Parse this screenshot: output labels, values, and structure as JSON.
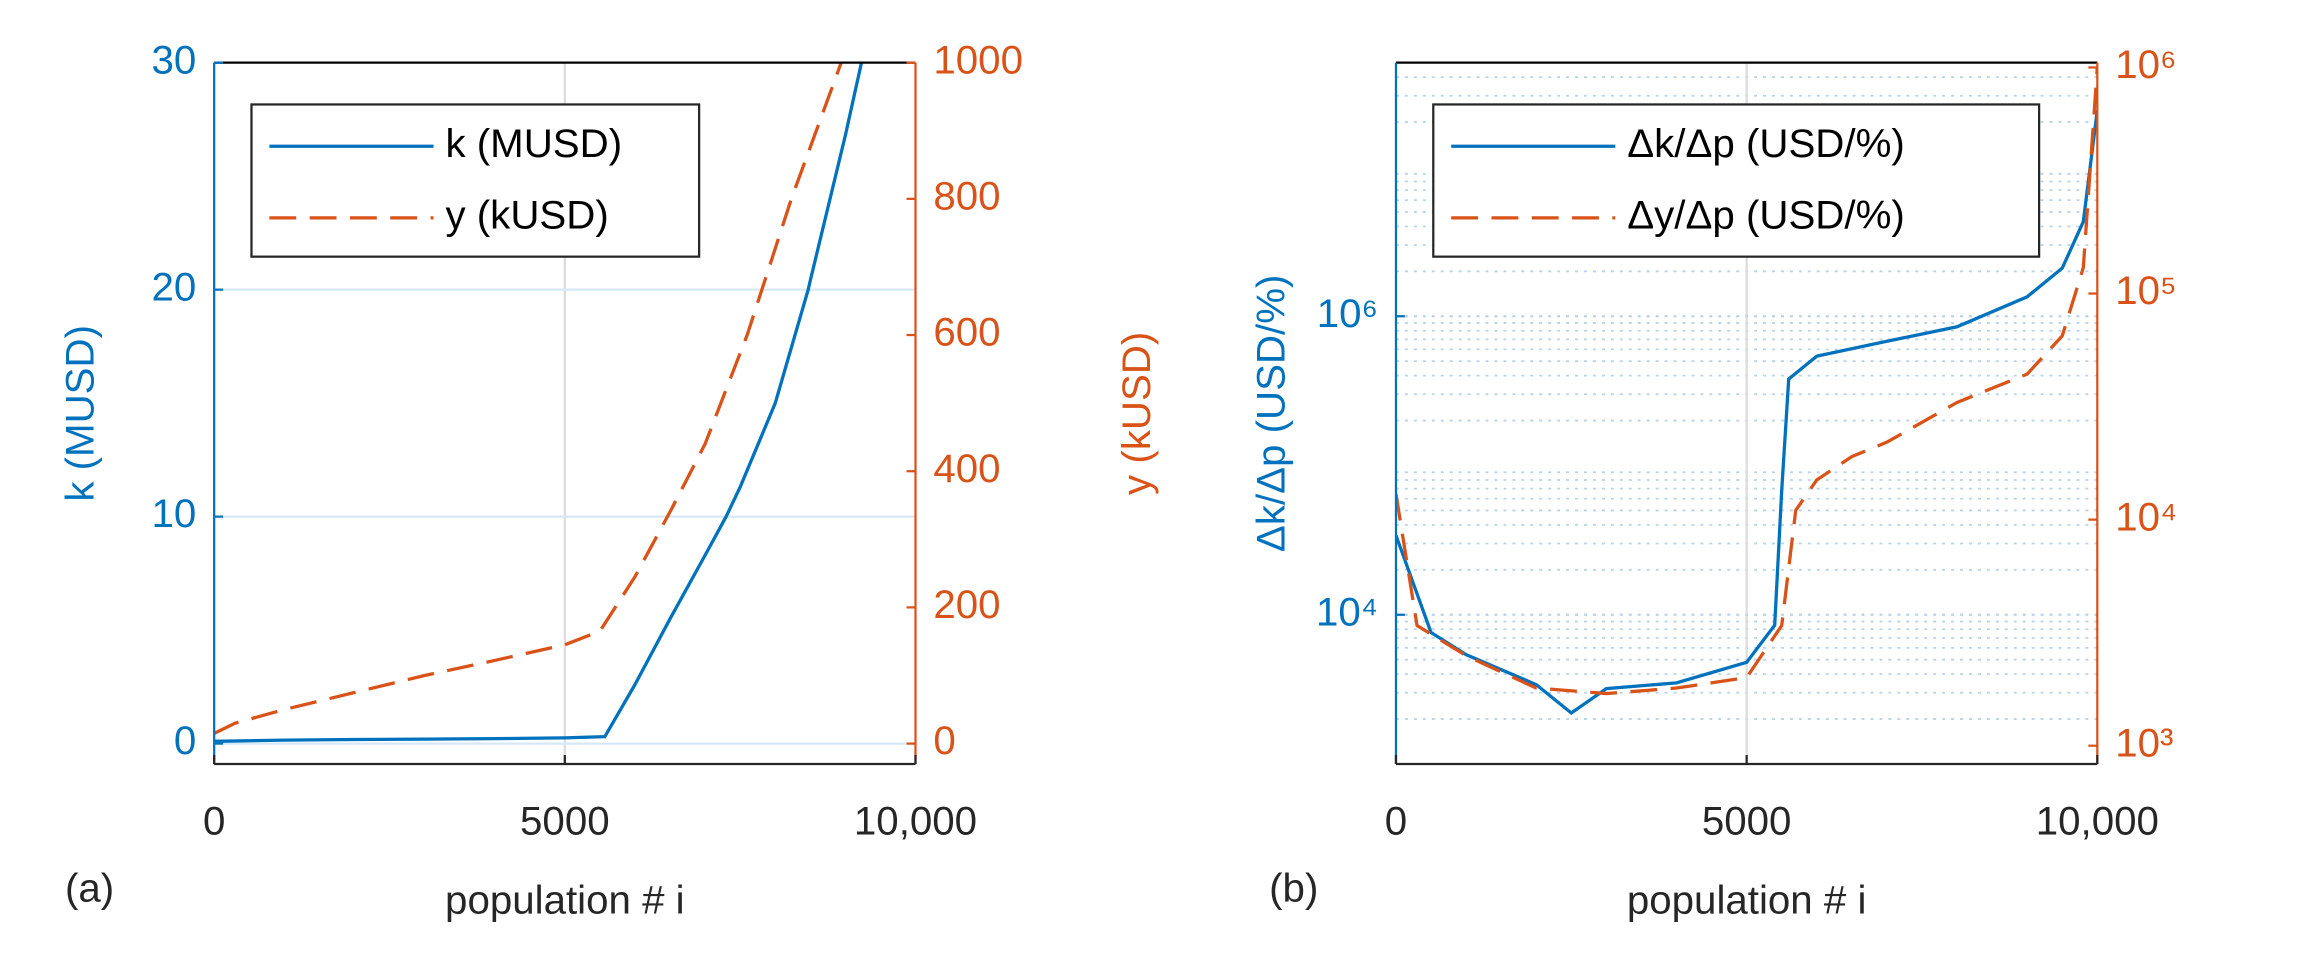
{
  "chart_data": [
    {
      "type": "line",
      "panel_label": "(a)",
      "xlabel": "population # i",
      "ylabel": "k (MUSD)",
      "y2label": "y (kUSD)",
      "xlim": [
        0,
        10000
      ],
      "xticks": [
        0,
        5000,
        {
          "value": 10000,
          "label": "10,000"
        }
      ],
      "ylim": [
        -0.9,
        30
      ],
      "yticks": [
        0,
        10,
        20,
        30
      ],
      "y2lim": [
        -30,
        1000
      ],
      "y2ticks": [
        0,
        200,
        400,
        600,
        800,
        1000
      ],
      "ylog": false,
      "y2log": false,
      "grid": true,
      "minor_grid": false,
      "legend": "top-left",
      "series": [
        {
          "name": "k (MUSD)",
          "color": "#0072BD",
          "dash": false,
          "axis": "y",
          "x": [
            0,
            1000,
            2000,
            3000,
            4000,
            5000,
            5570,
            6000,
            6500,
            7000,
            7300,
            7500,
            8000,
            8470,
            8500,
            9000,
            9230
          ],
          "values": [
            0.1,
            0.15,
            0.18,
            0.2,
            0.22,
            0.25,
            0.3,
            2.6,
            5.5,
            8.3,
            10,
            11.3,
            15,
            20,
            20.4,
            26.8,
            30
          ]
        },
        {
          "name": "y (kUSD)",
          "color": "#D95319",
          "dash": true,
          "axis": "y2",
          "x": [
            0,
            300,
            1000,
            2000,
            3000,
            4000,
            5000,
            5500,
            6000,
            6530,
            7000,
            7600,
            8230,
            8940
          ],
          "values": [
            15,
            30,
            50,
            75,
            100,
            122,
            145,
            165,
            245,
            346,
            440,
            600,
            800,
            1000
          ]
        }
      ]
    },
    {
      "type": "line",
      "panel_label": "(b)",
      "xlabel": "population # i",
      "ylabel": "Δk/Δp (USD/%)",
      "xlim": [
        0,
        10000
      ],
      "xticks": [
        0,
        5000,
        {
          "value": 10000,
          "label": "10,000"
        }
      ],
      "ylim": [
        1000,
        50000000
      ],
      "yticks": [
        {
          "value": 10000,
          "label": "10⁴"
        },
        {
          "value": 1000000,
          "label": "10⁶"
        }
      ],
      "y2lim": [
        830,
        1050000
      ],
      "y2ticks": [
        {
          "value": 1000,
          "label": "10³"
        },
        {
          "value": 10000,
          "label": "10⁴"
        },
        {
          "value": 100000,
          "label": "10⁵"
        },
        {
          "value": 1000000,
          "label": "10⁶"
        }
      ],
      "ylog": true,
      "y2log": true,
      "grid": true,
      "minor_grid": true,
      "legend": "top-left",
      "series": [
        {
          "name": "Δk/Δp (USD/%)",
          "color": "#0072BD",
          "dash": false,
          "axis": "y",
          "x": [
            0,
            500,
            1000,
            2000,
            2500,
            3000,
            4000,
            5000,
            5400,
            5500,
            5600,
            6000,
            7000,
            8000,
            9000,
            9500,
            9800,
            10000
          ],
          "values": [
            34000,
            7600,
            5400,
            3400,
            2200,
            3200,
            3500,
            4800,
            8500,
            68000,
            380000,
            540000,
            680000,
            850000,
            1350000,
            2100000,
            4300000,
            24000000
          ]
        },
        {
          "name": "Δy/Δp (USD/%)",
          "color": "#D95319",
          "dash": true,
          "axis": "y2",
          "x": [
            0,
            300,
            1000,
            2000,
            3000,
            4000,
            5000,
            5500,
            5700,
            6000,
            6500,
            7000,
            8000,
            9000,
            9500,
            9800,
            10000
          ],
          "values": [
            13000,
            3400,
            2500,
            1800,
            1700,
            1800,
            2000,
            3400,
            11000,
            15000,
            19000,
            22000,
            33000,
            44000,
            65000,
            130000,
            1000000
          ]
        }
      ]
    }
  ]
}
